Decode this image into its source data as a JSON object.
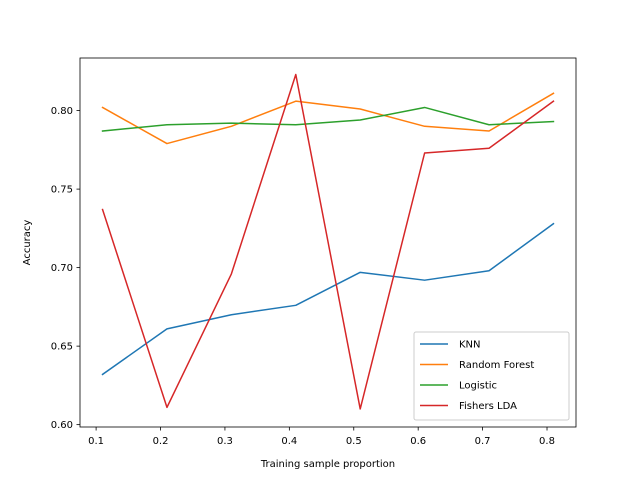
{
  "chart_data": {
    "type": "line",
    "title": "",
    "xlabel": "Training sample proportion",
    "ylabel": "Accuracy",
    "xlim": [
      0.075,
      0.845
    ],
    "ylim": [
      0.5985,
      0.8335
    ],
    "x": [
      0.11,
      0.21,
      0.31,
      0.41,
      0.51,
      0.61,
      0.71,
      0.81
    ],
    "xticks": [
      0.1,
      0.2,
      0.3,
      0.4,
      0.5,
      0.6,
      0.7,
      0.8
    ],
    "xtick_labels": [
      "0.1",
      "0.2",
      "0.3",
      "0.4",
      "0.5",
      "0.6",
      "0.7",
      "0.8"
    ],
    "yticks": [
      0.6,
      0.65,
      0.7,
      0.75,
      0.8
    ],
    "ytick_labels": [
      "0.60",
      "0.65",
      "0.70",
      "0.75",
      "0.80"
    ],
    "grid": false,
    "legend_position": "bottom-right",
    "series": [
      {
        "name": "KNN",
        "color": "#1f77b4",
        "values": [
          0.632,
          0.661,
          0.67,
          0.676,
          0.697,
          0.692,
          0.698,
          0.728
        ]
      },
      {
        "name": "Random Forest",
        "color": "#ff7f0e",
        "values": [
          0.802,
          0.779,
          0.79,
          0.806,
          0.801,
          0.79,
          0.787,
          0.811
        ]
      },
      {
        "name": "Logistic",
        "color": "#2ca02c",
        "values": [
          0.787,
          0.791,
          0.792,
          0.791,
          0.794,
          0.802,
          0.791,
          0.793
        ]
      },
      {
        "name": "Fishers LDA",
        "color": "#d62728",
        "values": [
          0.737,
          0.611,
          0.696,
          0.823,
          0.61,
          0.773,
          0.776,
          0.806
        ]
      }
    ]
  }
}
